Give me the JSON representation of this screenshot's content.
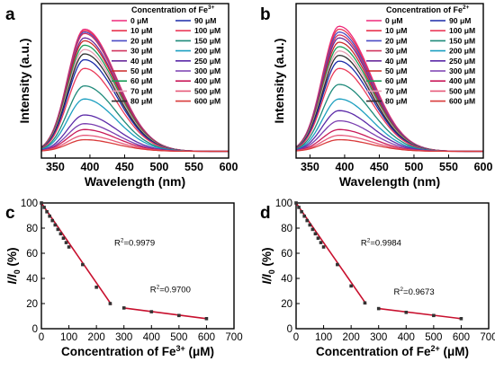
{
  "panel_letters": [
    "a",
    "b",
    "c",
    "d"
  ],
  "colors": {
    "spectra": [
      "#ee2a7b",
      "#e8344f",
      "#4b4bc4",
      "#d1365f",
      "#6a2c9c",
      "#cc2929",
      "#1f9e5a",
      "#e8a0b4",
      "#2d2d2d",
      "#1c2ba8",
      "#ea3b5a",
      "#1f8a7a",
      "#1c9fc0",
      "#5b2aa8",
      "#7a3fb0",
      "#c91b5a",
      "#e65a7a",
      "#d93a3a",
      "#111111"
    ],
    "fit_line": "#c8102e",
    "points": "#333333",
    "axis": "#000000"
  },
  "chart_data": [
    {
      "panel": "a",
      "type": "line",
      "xlabel": "Wavelength (nm)",
      "ylabel": "Intensity (a.u.)",
      "xlim": [
        330,
        600
      ],
      "xticks": [
        "350",
        "400",
        "450",
        "500",
        "550",
        "600"
      ],
      "legend_title_prefix": "Concentration of Fe",
      "legend_title_sup": "3+",
      "legend_position": "top-right",
      "peak_wavelength": 392,
      "series": [
        {
          "name": "0 μM",
          "peak": 0.84
        },
        {
          "name": "10 μM",
          "peak": 0.83
        },
        {
          "name": "20 μM",
          "peak": 0.82
        },
        {
          "name": "30 μM",
          "peak": 0.81
        },
        {
          "name": "40 μM",
          "peak": 0.78
        },
        {
          "name": "50 μM",
          "peak": 0.76
        },
        {
          "name": "60 μM",
          "peak": 0.73
        },
        {
          "name": "70 μM",
          "peak": 0.7
        },
        {
          "name": "80 μM",
          "peak": 0.67
        },
        {
          "name": "90 μM",
          "peak": 0.63
        },
        {
          "name": "100 μM",
          "peak": 0.57
        },
        {
          "name": "150 μM",
          "peak": 0.45
        },
        {
          "name": "200 μM",
          "peak": 0.36
        },
        {
          "name": "250 μM",
          "peak": 0.25
        },
        {
          "name": "300 μM",
          "peak": 0.19
        },
        {
          "name": "400 μM",
          "peak": 0.15
        },
        {
          "name": "500 μM",
          "peak": 0.11
        },
        {
          "name": "600 μM",
          "peak": 0.08
        }
      ]
    },
    {
      "panel": "b",
      "type": "line",
      "xlabel": "Wavelength (nm)",
      "ylabel": "Intensity (a.u.)",
      "xlim": [
        330,
        600
      ],
      "xticks": [
        "350",
        "400",
        "450",
        "500",
        "550",
        "600"
      ],
      "legend_title_prefix": "Concentration of Fe",
      "legend_title_sup": "2+",
      "legend_position": "top-right",
      "peak_wavelength": 392,
      "series": [
        {
          "name": "0 μM",
          "peak": 0.86
        },
        {
          "name": "10 μM",
          "peak": 0.84
        },
        {
          "name": "20 μM",
          "peak": 0.82
        },
        {
          "name": "30 μM",
          "peak": 0.8
        },
        {
          "name": "40 μM",
          "peak": 0.78
        },
        {
          "name": "50 μM",
          "peak": 0.75
        },
        {
          "name": "60 μM",
          "peak": 0.72
        },
        {
          "name": "70 μM",
          "peak": 0.69
        },
        {
          "name": "80 μM",
          "peak": 0.66
        },
        {
          "name": "90 μM",
          "peak": 0.62
        },
        {
          "name": "100 μM",
          "peak": 0.57
        },
        {
          "name": "150 μM",
          "peak": 0.46
        },
        {
          "name": "200 μM",
          "peak": 0.36
        },
        {
          "name": "250 μM",
          "peak": 0.28
        },
        {
          "name": "300 μM",
          "peak": 0.21
        },
        {
          "name": "400 μM",
          "peak": 0.15
        },
        {
          "name": "500 μM",
          "peak": 0.11
        },
        {
          "name": "600 μM",
          "peak": 0.08
        }
      ]
    },
    {
      "panel": "c",
      "type": "scatter",
      "xlabel_prefix": "Concentration of Fe",
      "xlabel_sup": "3+",
      "xlabel_suffix": " (μM)",
      "ylabel_main": "I/I",
      "ylabel_sub": "0",
      "ylabel_suffix": " (%)",
      "xlim": [
        0,
        700
      ],
      "ylim": [
        0,
        100
      ],
      "xticks": [
        0,
        100,
        200,
        300,
        400,
        500,
        600,
        700
      ],
      "yticks": [
        0,
        20,
        40,
        60,
        80,
        100
      ],
      "points": [
        {
          "x": 0,
          "y": 100
        },
        {
          "x": 10,
          "y": 96.5
        },
        {
          "x": 20,
          "y": 93
        },
        {
          "x": 30,
          "y": 89.5
        },
        {
          "x": 40,
          "y": 86
        },
        {
          "x": 50,
          "y": 82.5
        },
        {
          "x": 60,
          "y": 79
        },
        {
          "x": 70,
          "y": 75.5
        },
        {
          "x": 80,
          "y": 72
        },
        {
          "x": 90,
          "y": 68.5
        },
        {
          "x": 100,
          "y": 65
        },
        {
          "x": 150,
          "y": 51
        },
        {
          "x": 200,
          "y": 33
        },
        {
          "x": 250,
          "y": 20
        },
        {
          "x": 300,
          "y": 16.5
        },
        {
          "x": 400,
          "y": 13.5
        },
        {
          "x": 500,
          "y": 10.5
        },
        {
          "x": 600,
          "y": 8
        }
      ],
      "fits": [
        {
          "x": [
            0,
            255
          ],
          "y": [
            100,
            19
          ],
          "r2_label": "0.9979",
          "r2_at": {
            "x": 265,
            "y": 66
          }
        },
        {
          "x": [
            300,
            600
          ],
          "y": [
            16.5,
            8
          ],
          "r2_label": "0.9700",
          "r2_at": {
            "x": 395,
            "y": 29
          }
        }
      ]
    },
    {
      "panel": "d",
      "type": "scatter",
      "xlabel_prefix": "Concentration of Fe",
      "xlabel_sup": "2+",
      "xlabel_suffix": " (μM)",
      "ylabel_main": "I/I",
      "ylabel_sub": "0",
      "ylabel_suffix": " (%)",
      "xlim": [
        0,
        700
      ],
      "ylim": [
        0,
        100
      ],
      "xticks": [
        0,
        100,
        200,
        300,
        400,
        500,
        600,
        700
      ],
      "yticks": [
        0,
        20,
        40,
        60,
        80,
        100
      ],
      "points": [
        {
          "x": 0,
          "y": 100
        },
        {
          "x": 10,
          "y": 96.5
        },
        {
          "x": 20,
          "y": 93
        },
        {
          "x": 30,
          "y": 89.5
        },
        {
          "x": 40,
          "y": 86
        },
        {
          "x": 50,
          "y": 82.5
        },
        {
          "x": 60,
          "y": 79
        },
        {
          "x": 70,
          "y": 75.5
        },
        {
          "x": 80,
          "y": 72
        },
        {
          "x": 90,
          "y": 68.5
        },
        {
          "x": 100,
          "y": 65
        },
        {
          "x": 150,
          "y": 51
        },
        {
          "x": 200,
          "y": 34
        },
        {
          "x": 250,
          "y": 20.5
        },
        {
          "x": 300,
          "y": 16
        },
        {
          "x": 400,
          "y": 13
        },
        {
          "x": 500,
          "y": 10.5
        },
        {
          "x": 600,
          "y": 8
        }
      ],
      "fits": [
        {
          "x": [
            0,
            255
          ],
          "y": [
            100,
            19.5
          ],
          "r2_label": "0.9984",
          "r2_at": {
            "x": 235,
            "y": 66
          }
        },
        {
          "x": [
            300,
            600
          ],
          "y": [
            16,
            8
          ],
          "r2_label": "0.9673",
          "r2_at": {
            "x": 355,
            "y": 27
          }
        }
      ]
    }
  ]
}
